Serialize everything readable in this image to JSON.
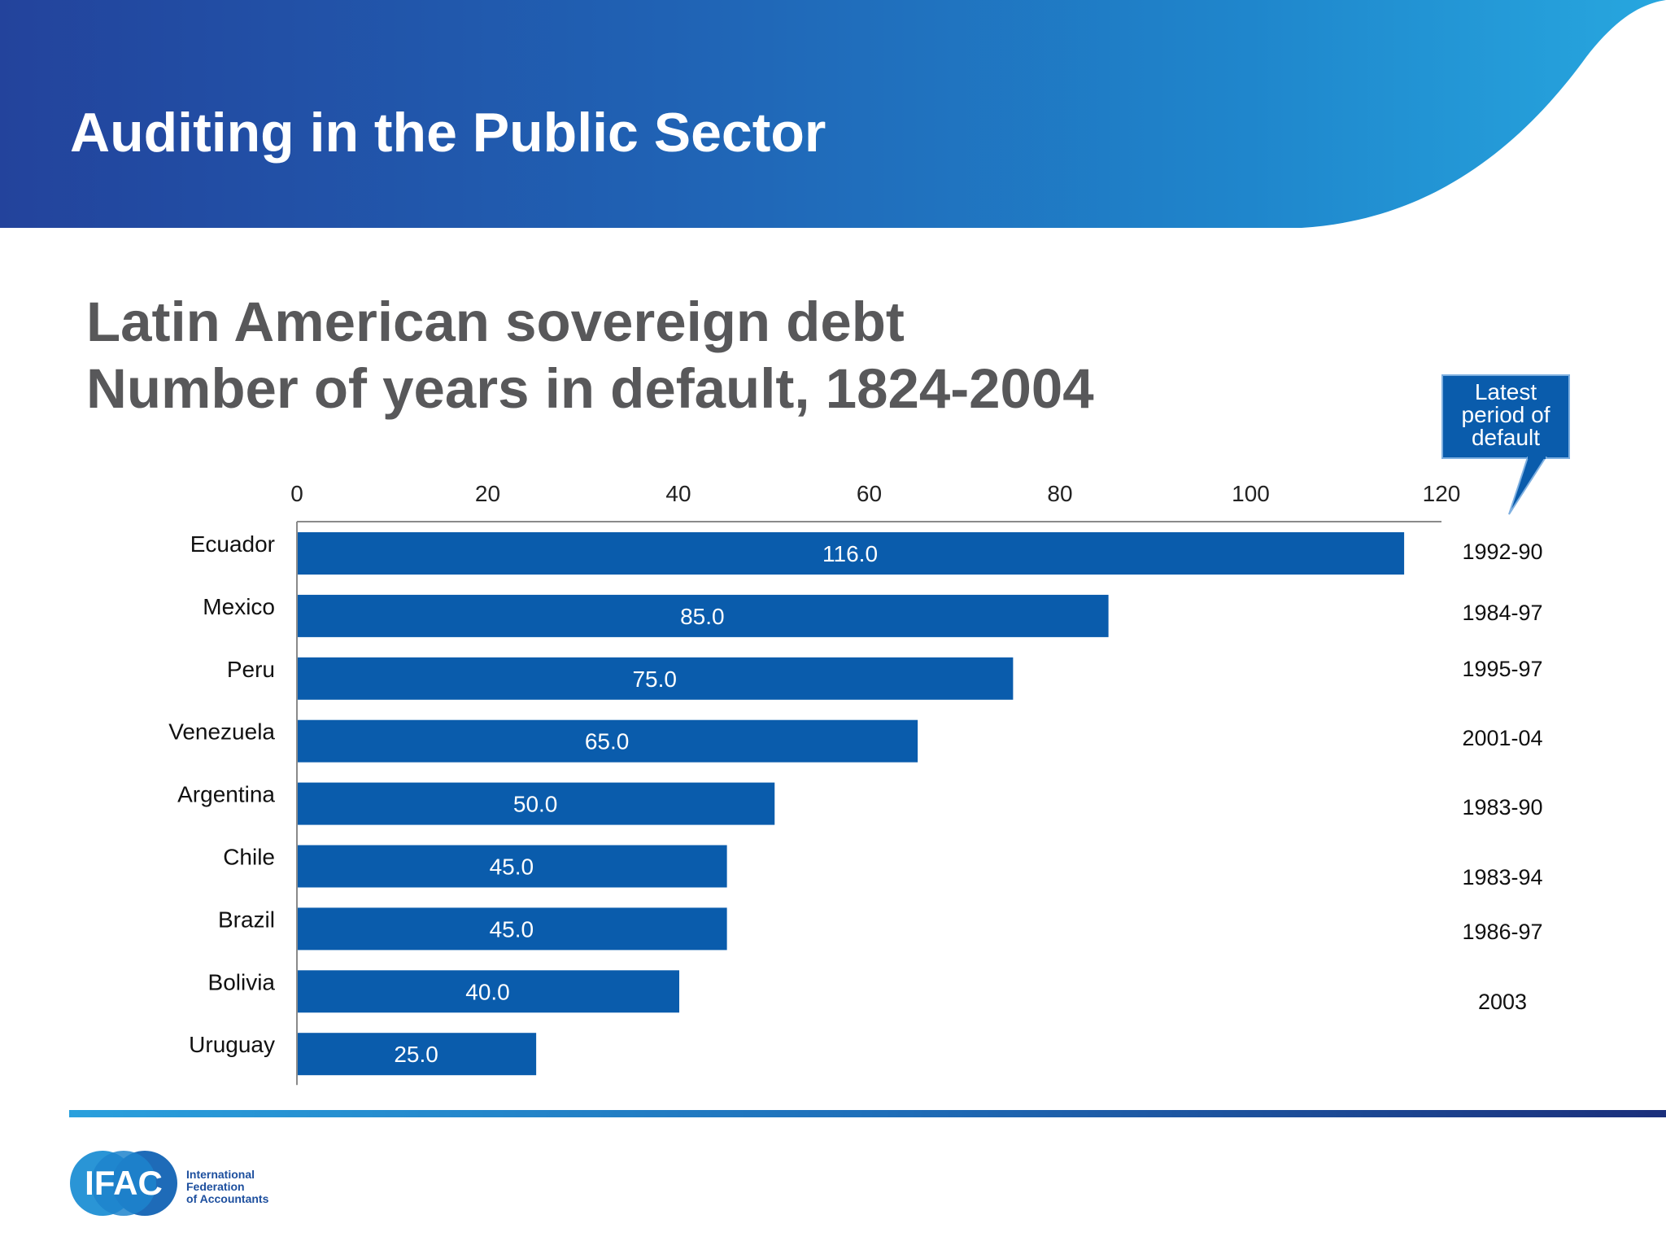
{
  "slide": {
    "title": "Auditing in the Public Sector"
  },
  "chart_data": {
    "type": "bar",
    "orientation": "horizontal",
    "title_lines": [
      "Latin American sovereign debt",
      "Number of years in default, 1824-2004"
    ],
    "categories": [
      "Ecuador",
      "Mexico",
      "Peru",
      "Venezuela",
      "Argentina",
      "Chile",
      "Brazil",
      "Bolivia",
      "Uruguay"
    ],
    "values": [
      116,
      85,
      75,
      65,
      50,
      45,
      45,
      40,
      25
    ],
    "value_labels": [
      "116.0",
      "85.0",
      "75.0",
      "65.0",
      "50.0",
      "45.0",
      "45.0",
      "40.0",
      "25.0"
    ],
    "latest_default": [
      "1992-90",
      "1984-97",
      "1995-97",
      "2001-04",
      "1983-90",
      "1983-94",
      "1986-97",
      "2003",
      ""
    ],
    "xlim": [
      0,
      120
    ],
    "xticks": [
      0,
      20,
      40,
      60,
      80,
      100,
      120
    ],
    "axis_position": "top",
    "grid": false,
    "bar_color": "#0a5cac",
    "callout": {
      "lines": [
        "Latest",
        "period of",
        "default"
      ],
      "color": "#0a5cac"
    }
  },
  "footer": {
    "logo_mark": "IFAC",
    "logo_lines": [
      "International",
      "Federation",
      "of Accountants"
    ]
  },
  "colors": {
    "banner_start": "#23439c",
    "banner_end": "#27a7df",
    "title_gray": "#58585a",
    "bar": "#0a5cac"
  }
}
